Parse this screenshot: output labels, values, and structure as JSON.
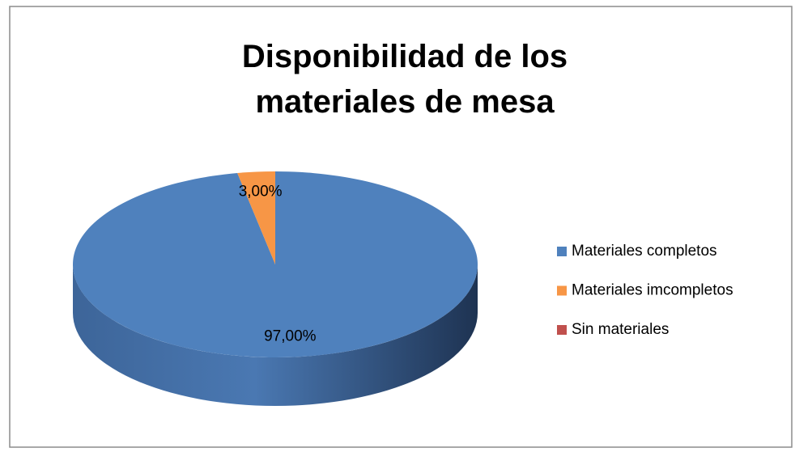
{
  "chart_data": {
    "type": "pie3d",
    "title": "Disponibilidad de los materiales de mesa",
    "categories": [
      "Materiales completos",
      "Materiales imcompletos",
      "Sin materiales"
    ],
    "values": [
      97,
      3,
      0
    ],
    "value_labels": [
      "97,00%",
      "3,00%",
      null
    ],
    "colors": [
      "#4f81bd",
      "#f79646",
      "#c0504d"
    ],
    "legend": "right"
  }
}
